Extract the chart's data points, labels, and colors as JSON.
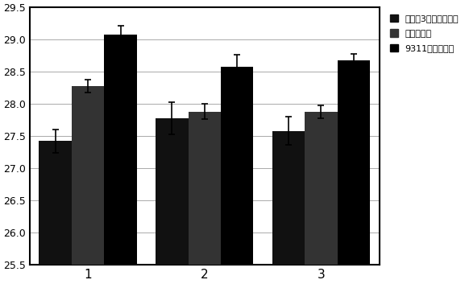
{
  "groups": [
    "1",
    "2",
    "3"
  ],
  "series": [
    {
      "label": "荷花糯3号纯合基因型",
      "color": "#111111",
      "values": [
        27.42,
        27.77,
        27.58
      ],
      "errors": [
        0.18,
        0.25,
        0.22
      ]
    },
    {
      "label": "杂合基因型",
      "color": "#333333",
      "values": [
        28.28,
        27.88,
        27.88
      ],
      "errors": [
        0.1,
        0.12,
        0.1
      ]
    },
    {
      "label": "9311纯合基因型",
      "color": "#000000",
      "values": [
        29.08,
        28.58,
        28.68
      ],
      "errors": [
        0.13,
        0.18,
        0.1
      ]
    }
  ],
  "ylim": [
    25.5,
    29.5
  ],
  "yticks": [
    25.5,
    26.0,
    26.5,
    27.0,
    27.5,
    28.0,
    28.5,
    29.0,
    29.5
  ],
  "bar_width": 0.28,
  "group_positions": [
    1,
    2,
    3
  ],
  "background_color": "#ffffff",
  "capsize": 3,
  "figsize": [
    5.77,
    3.53
  ],
  "dpi": 100
}
